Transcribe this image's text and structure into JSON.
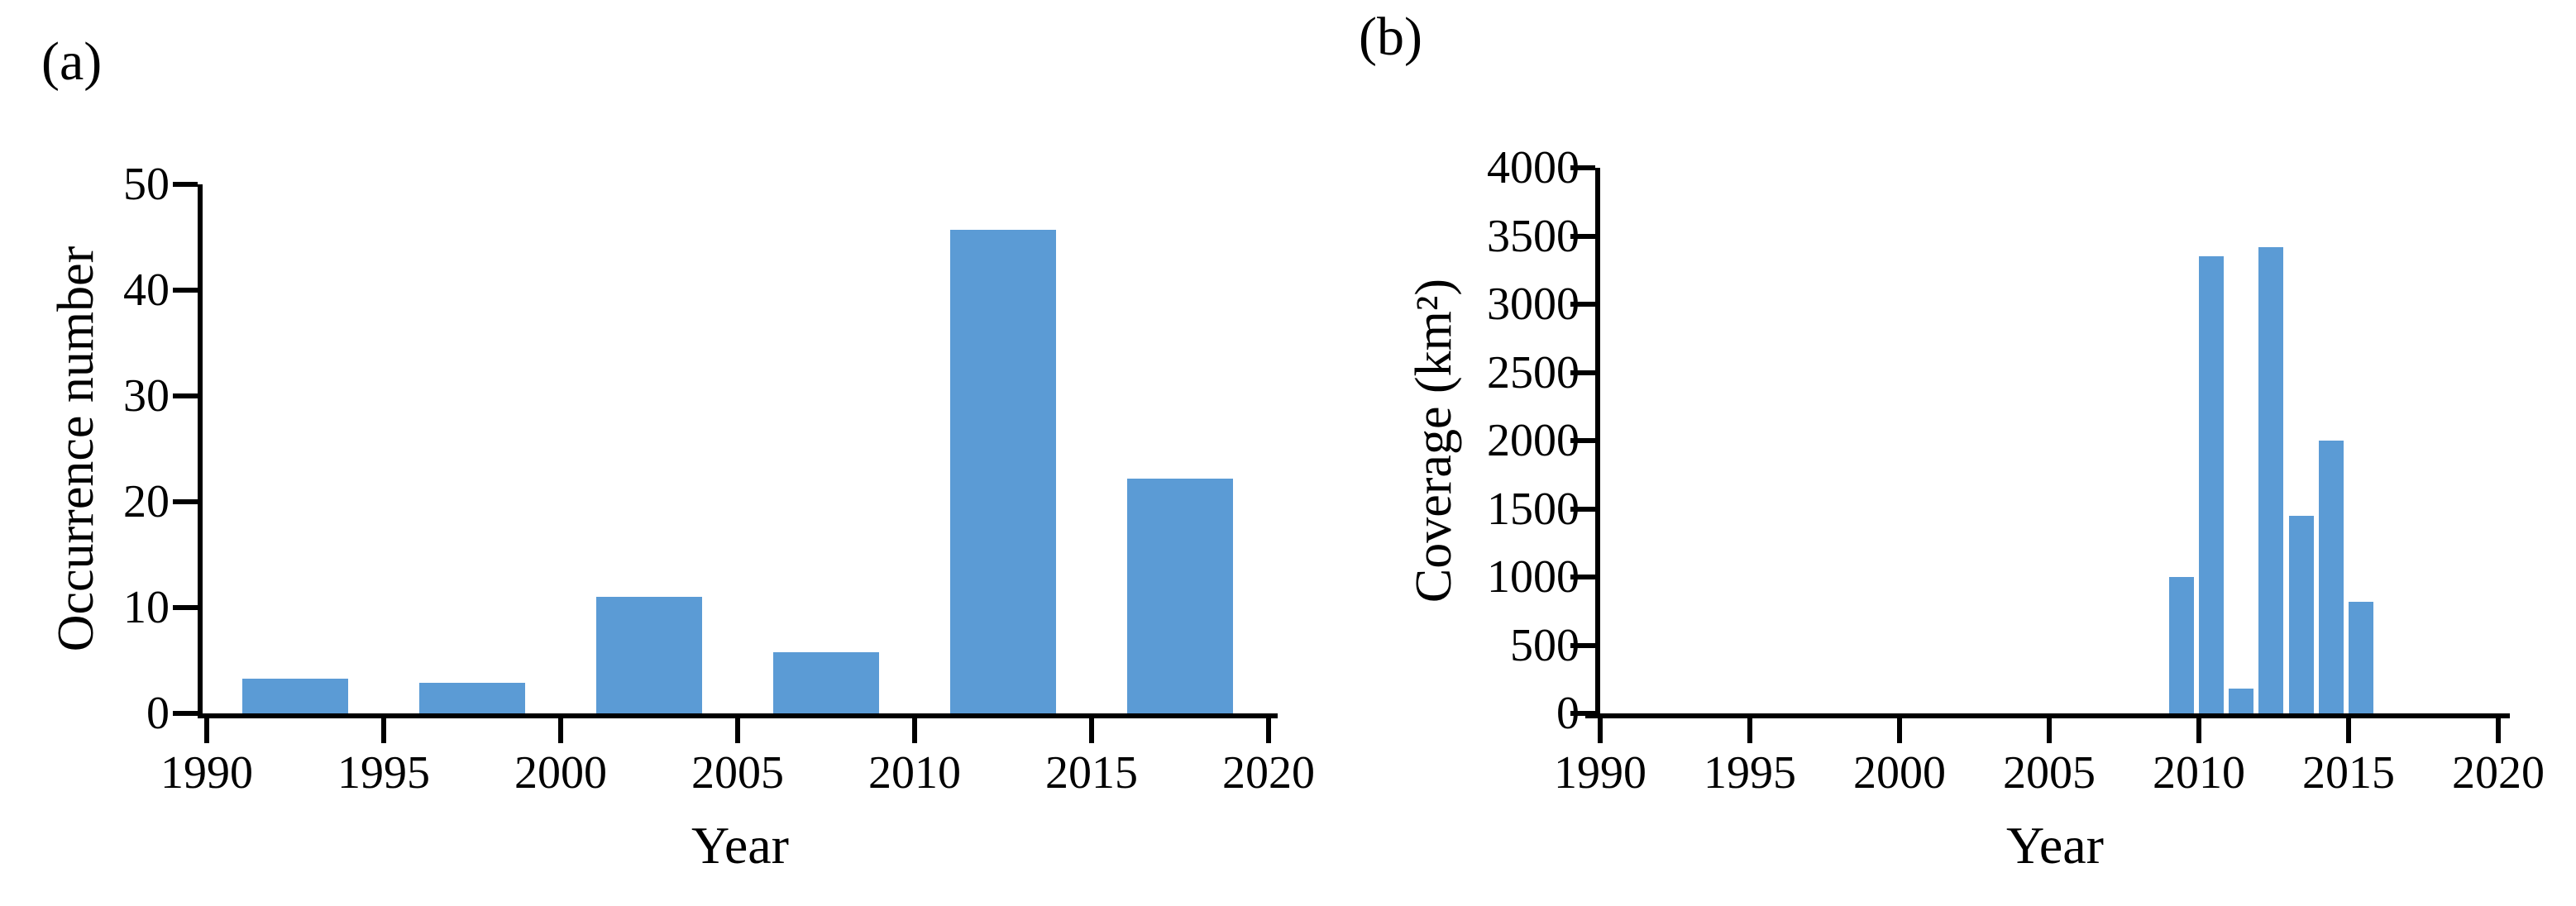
{
  "figure": {
    "background": "#ffffff",
    "text_color": "#000000",
    "panel_count": 2
  },
  "chart_data": [
    {
      "type": "bar",
      "title": "(a)",
      "xlabel": "Year",
      "ylabel": "Occurrence number",
      "xlim": [
        1989.9,
        2020.3
      ],
      "ylim": [
        0,
        50
      ],
      "x_ticks": [
        1990,
        1995,
        2000,
        2005,
        2010,
        2015,
        2020
      ],
      "y_ticks": [
        0,
        10,
        20,
        30,
        40,
        50
      ],
      "grid": false,
      "legend": null,
      "bar_color": "#5b9bd5",
      "bars": [
        {
          "x_start": 1991,
          "x_end": 1994,
          "value": 3.3
        },
        {
          "x_start": 1996,
          "x_end": 1999,
          "value": 2.9
        },
        {
          "x_start": 2001,
          "x_end": 2004,
          "value": 11
        },
        {
          "x_start": 2006,
          "x_end": 2009,
          "value": 5.8
        },
        {
          "x_start": 2011,
          "x_end": 2014,
          "value": 45.7
        },
        {
          "x_start": 2016,
          "x_end": 2019,
          "value": 22.2
        }
      ]
    },
    {
      "type": "bar",
      "title": "(b)",
      "xlabel": "Year",
      "ylabel": "Coverage (km²)",
      "xlim": [
        1990,
        2020.4
      ],
      "ylim": [
        0,
        4000
      ],
      "x_ticks": [
        1990,
        1995,
        2000,
        2005,
        2010,
        2015,
        2020
      ],
      "y_ticks": [
        0,
        500,
        1000,
        1500,
        2000,
        2500,
        3000,
        3500,
        4000
      ],
      "grid": false,
      "legend": null,
      "bar_color": "#5b9bd5",
      "bars": [
        {
          "x_start": 2009,
          "x_end": 2009.83,
          "value": 1000
        },
        {
          "x_start": 2010,
          "x_end": 2010.83,
          "value": 3350
        },
        {
          "x_start": 2011,
          "x_end": 2011.83,
          "value": 180
        },
        {
          "x_start": 2012,
          "x_end": 2012.83,
          "value": 3420
        },
        {
          "x_start": 2013,
          "x_end": 2013.83,
          "value": 1450
        },
        {
          "x_start": 2014,
          "x_end": 2014.83,
          "value": 2000
        },
        {
          "x_start": 2015,
          "x_end": 2015.83,
          "value": 820
        }
      ]
    }
  ]
}
